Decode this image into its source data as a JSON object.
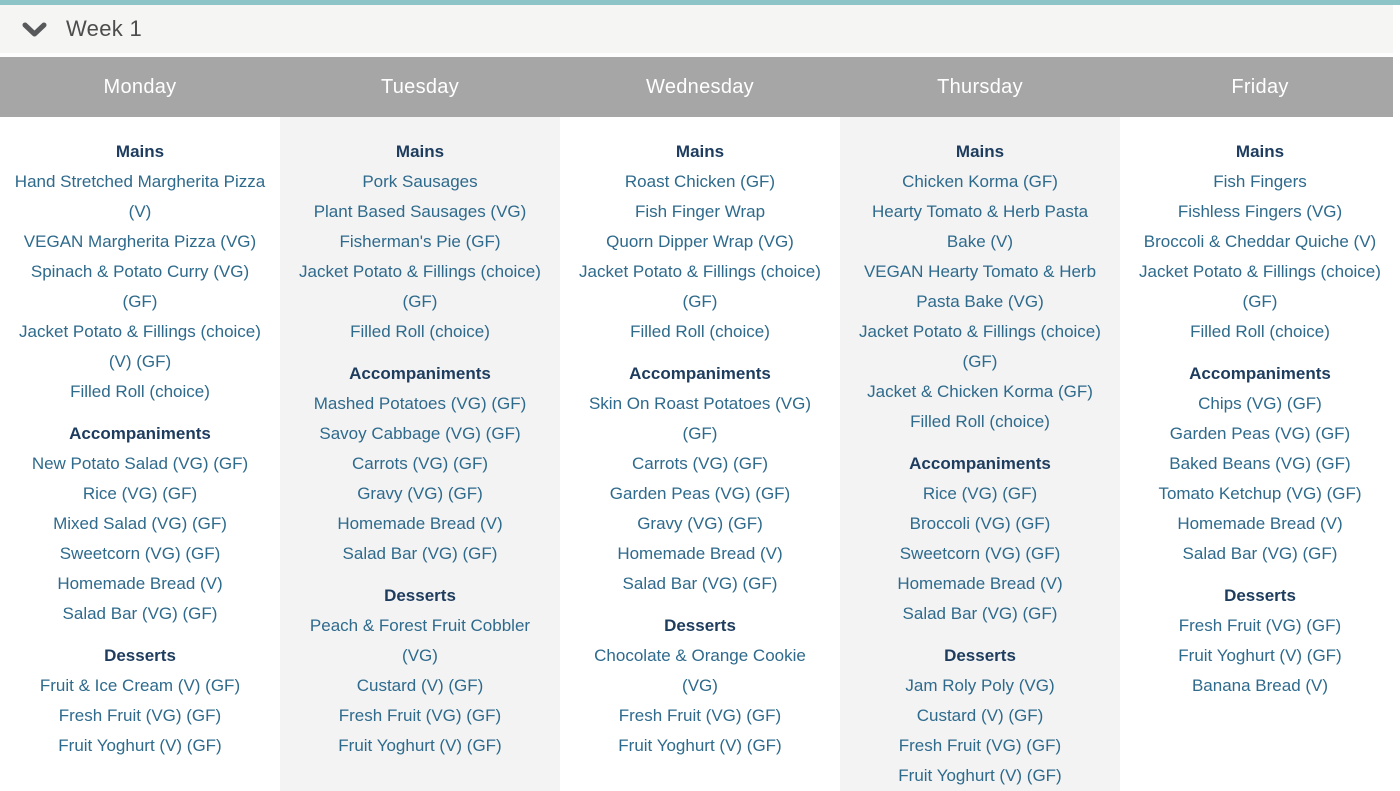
{
  "page": {
    "accent_bar_color": "#8cc4c8",
    "day_bar_color": "#a6a6a6",
    "alt_column_color": "#f3f3f3",
    "section_title_color": "#1d3c5e",
    "item_text_color": "#2e6a8c"
  },
  "week_header": {
    "label": "Week 1",
    "chevron_icon": "chevron-down-icon"
  },
  "menu": {
    "days": [
      {
        "label": "Monday",
        "sections": [
          {
            "title": "Mains",
            "items": [
              "Hand Stretched Margherita Pizza (V)",
              "VEGAN Margherita Pizza (VG)",
              "Spinach & Potato Curry (VG) (GF)",
              "Jacket Potato & Fillings (choice) (V) (GF)",
              "Filled Roll (choice)"
            ]
          },
          {
            "title": "Accompaniments",
            "items": [
              "New Potato Salad (VG) (GF)",
              "Rice (VG) (GF)",
              "Mixed Salad (VG) (GF)",
              "Sweetcorn (VG) (GF)",
              "Homemade Bread (V)",
              "Salad Bar (VG) (GF)"
            ]
          },
          {
            "title": "Desserts",
            "items": [
              "Fruit & Ice Cream (V) (GF)",
              "Fresh Fruit (VG) (GF)",
              "Fruit Yoghurt (V) (GF)"
            ]
          }
        ]
      },
      {
        "label": "Tuesday",
        "sections": [
          {
            "title": "Mains",
            "items": [
              "Pork Sausages",
              "Plant Based Sausages (VG)",
              "Fisherman's Pie (GF)",
              "Jacket Potato & Fillings (choice) (GF)",
              "Filled Roll (choice)"
            ]
          },
          {
            "title": "Accompaniments",
            "items": [
              "Mashed Potatoes (VG) (GF)",
              "Savoy Cabbage (VG) (GF)",
              "Carrots (VG) (GF)",
              "Gravy (VG) (GF)",
              "Homemade Bread (V)",
              "Salad Bar (VG) (GF)"
            ]
          },
          {
            "title": "Desserts",
            "items": [
              "Peach & Forest Fruit Cobbler (VG)",
              "Custard (V) (GF)",
              "Fresh Fruit (VG) (GF)",
              "Fruit Yoghurt (V) (GF)"
            ]
          }
        ]
      },
      {
        "label": "Wednesday",
        "sections": [
          {
            "title": "Mains",
            "items": [
              "Roast Chicken (GF)",
              "Fish Finger Wrap",
              "Quorn Dipper Wrap (VG)",
              "Jacket Potato & Fillings (choice) (GF)",
              "Filled Roll (choice)"
            ]
          },
          {
            "title": "Accompaniments",
            "items": [
              "Skin On Roast Potatoes (VG) (GF)",
              "Carrots (VG) (GF)",
              "Garden Peas (VG) (GF)",
              "Gravy (VG) (GF)",
              "Homemade Bread (V)",
              "Salad Bar (VG) (GF)"
            ]
          },
          {
            "title": "Desserts",
            "items": [
              "Chocolate & Orange Cookie (VG)",
              "Fresh Fruit (VG) (GF)",
              "Fruit Yoghurt (V) (GF)"
            ]
          }
        ]
      },
      {
        "label": "Thursday",
        "sections": [
          {
            "title": "Mains",
            "items": [
              "Chicken Korma (GF)",
              "Hearty Tomato & Herb Pasta Bake (V)",
              "VEGAN Hearty Tomato & Herb Pasta Bake (VG)",
              "Jacket Potato & Fillings (choice) (GF)",
              "Jacket & Chicken Korma (GF)",
              "Filled Roll (choice)"
            ]
          },
          {
            "title": "Accompaniments",
            "items": [
              "Rice (VG) (GF)",
              "Broccoli (VG) (GF)",
              "Sweetcorn (VG) (GF)",
              "Homemade Bread (V)",
              "Salad Bar (VG) (GF)"
            ]
          },
          {
            "title": "Desserts",
            "items": [
              "Jam Roly Poly (VG)",
              "Custard (V) (GF)",
              "Fresh Fruit (VG) (GF)",
              "Fruit Yoghurt (V) (GF)"
            ]
          }
        ]
      },
      {
        "label": "Friday",
        "sections": [
          {
            "title": "Mains",
            "items": [
              "Fish Fingers",
              "Fishless Fingers (VG)",
              "Broccoli & Cheddar Quiche (V)",
              "Jacket Potato & Fillings (choice) (GF)",
              "Filled Roll (choice)"
            ]
          },
          {
            "title": "Accompaniments",
            "items": [
              "Chips (VG) (GF)",
              "Garden Peas (VG) (GF)",
              "Baked Beans (VG) (GF)",
              "Tomato Ketchup (VG) (GF)",
              "Homemade Bread (V)",
              "Salad Bar (VG) (GF)"
            ]
          },
          {
            "title": "Desserts",
            "items": [
              "Fresh Fruit (VG) (GF)",
              "Fruit Yoghurt (V) (GF)",
              "Banana Bread (V)"
            ]
          }
        ]
      }
    ]
  }
}
